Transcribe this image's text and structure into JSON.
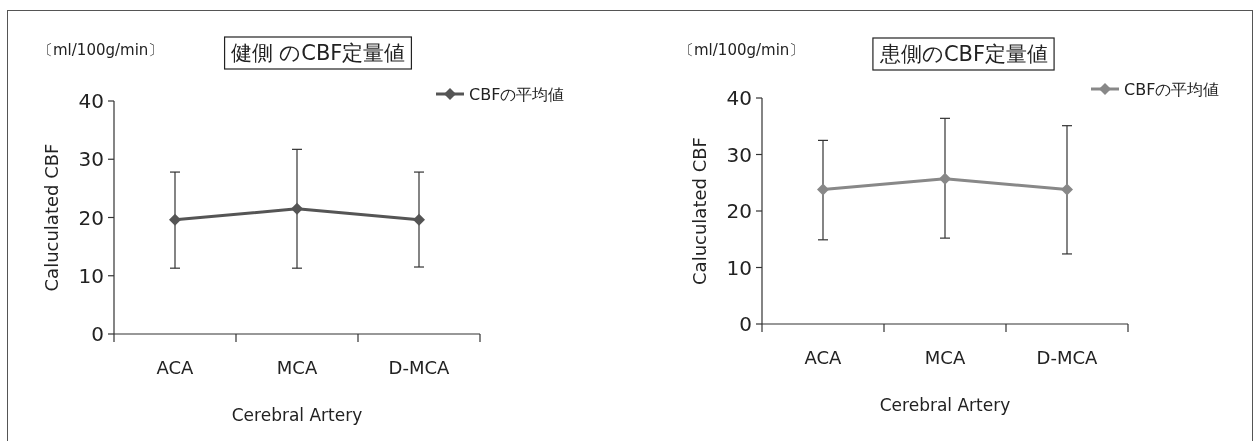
{
  "chart_data": [
    {
      "type": "line",
      "title": "健側 のCBF定量値",
      "ylabel": "Caluculated CBF",
      "xlabel": "Cerebral Artery",
      "annotations": [
        "〔ml/100g/min〕"
      ],
      "categories": [
        "ACA",
        "MCA",
        "D-MCA"
      ],
      "series": [
        {
          "name": "CBFの平均値",
          "color": "#555555",
          "values": [
            19.6,
            21.5,
            19.6
          ],
          "errors": [
            [
              11.3,
              27.8
            ],
            [
              11.3,
              31.7
            ],
            [
              11.5,
              27.8
            ]
          ]
        }
      ],
      "ylim": [
        0,
        40
      ],
      "yticks": [
        0,
        10,
        20,
        30,
        40
      ],
      "grid": false,
      "legend": "top right",
      "marker": "diamond",
      "line_style": "solid"
    },
    {
      "type": "line",
      "title": "患側のCBF定量値",
      "ylabel": "Caluculated CBF",
      "xlabel": "Cerebral Artery",
      "annotations": [
        "〔ml/100g/min〕"
      ],
      "categories": [
        "ACA",
        "MCA",
        "D-MCA"
      ],
      "series": [
        {
          "name": "CBFの平均値",
          "color": "#888888",
          "values": [
            23.8,
            25.7,
            23.8
          ],
          "errors": [
            [
              14.9,
              32.5
            ],
            [
              15.2,
              36.4
            ],
            [
              12.4,
              35.1
            ]
          ]
        }
      ],
      "ylim": [
        0,
        40
      ],
      "yticks": [
        0,
        10,
        20,
        30,
        40
      ],
      "grid": false,
      "legend": "top right",
      "marker": "diamond",
      "line_style": "solid"
    }
  ]
}
